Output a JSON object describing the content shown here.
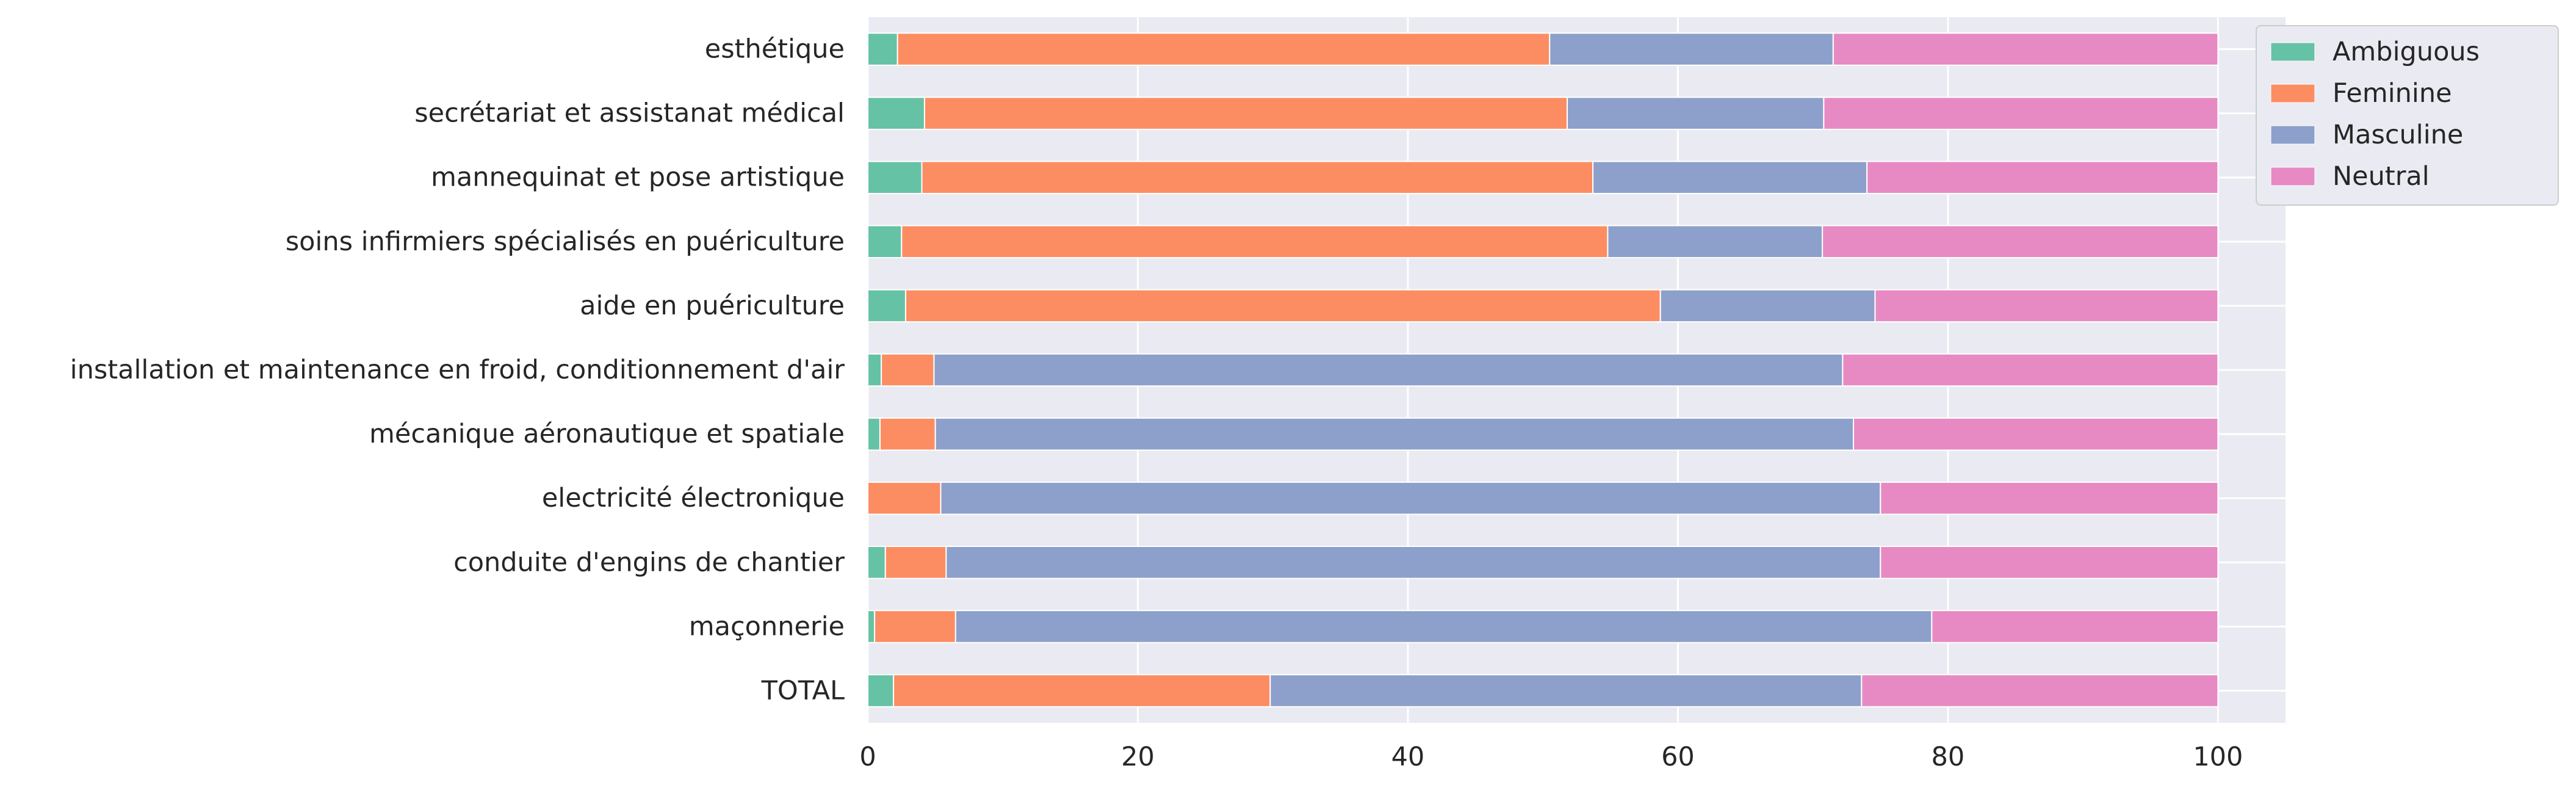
{
  "chart_data": {
    "type": "bar",
    "orientation": "horizontal",
    "stacked": true,
    "categories": [
      "esthétique",
      "secrétariat et assistanat médical",
      "mannequinat et pose artistique",
      "soins infirmiers spécialisés en puériculture",
      "aide en puériculture",
      "installation et maintenance en froid, conditionnement d'air",
      "mécanique aéronautique et spatiale",
      "electricité électronique",
      "conduite d'engins de chantier",
      "maçonnerie",
      "TOTAL"
    ],
    "series": [
      {
        "name": "Ambiguous",
        "color": "#66c2a5",
        "values": [
          2.2,
          4.2,
          4.0,
          2.5,
          2.8,
          1.0,
          0.9,
          0.0,
          1.3,
          0.5,
          1.9
        ]
      },
      {
        "name": "Feminine",
        "color": "#fc8d62",
        "values": [
          48.3,
          47.6,
          49.7,
          52.3,
          55.9,
          3.9,
          4.1,
          5.4,
          4.5,
          6.0,
          27.9
        ]
      },
      {
        "name": "Masculine",
        "color": "#8da0cb",
        "values": [
          21.0,
          19.0,
          20.3,
          15.9,
          15.9,
          67.3,
          68.0,
          69.6,
          69.2,
          72.3,
          43.8
        ]
      },
      {
        "name": "Neutral",
        "color": "#e78ac3",
        "values": [
          28.5,
          29.2,
          26.0,
          29.3,
          25.4,
          27.8,
          27.0,
          25.0,
          25.0,
          21.2,
          26.4
        ]
      }
    ],
    "xlim": [
      0,
      105
    ],
    "xticks": [
      0,
      20,
      40,
      60,
      80,
      100
    ],
    "xlabel": "",
    "ylabel": "",
    "grid": true,
    "legend_position": "outside top-right",
    "background": "#eaeaf2"
  }
}
